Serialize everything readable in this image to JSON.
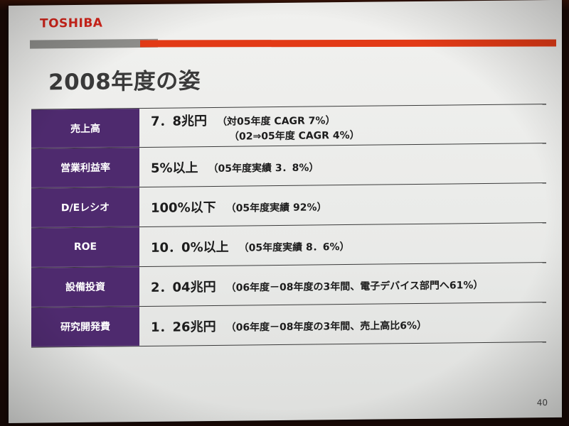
{
  "slide": {
    "logo": "TOSHIBA",
    "title": "2008年度の姿",
    "page_number": "40"
  },
  "rows": [
    {
      "label": "売上高",
      "main": "7．8兆円",
      "note": "（対05年度 CAGR 7%）",
      "note2": "（02⇒05年度 CAGR 4%）"
    },
    {
      "label": "営業利益率",
      "main": "5%以上",
      "note": "（05年度実績 3．8%）"
    },
    {
      "label": "D/Eレシオ",
      "main": "100%以下",
      "note": "（05年度実績 92%）"
    },
    {
      "label": "ROE",
      "main": "10．0%以上",
      "note": "（05年度実績 8．6%）"
    },
    {
      "label": "設備投資",
      "main": "2．04兆円",
      "note": "（06年度－08年度の3年間、電子デバイス部門へ61%）"
    },
    {
      "label": "研究開発費",
      "main": "1．26兆円",
      "note": "（06年度－08年度の3年間、売上高比6%）"
    }
  ],
  "colors": {
    "brand_red": "#d8261c",
    "label_purple": "#4e2a6e"
  }
}
